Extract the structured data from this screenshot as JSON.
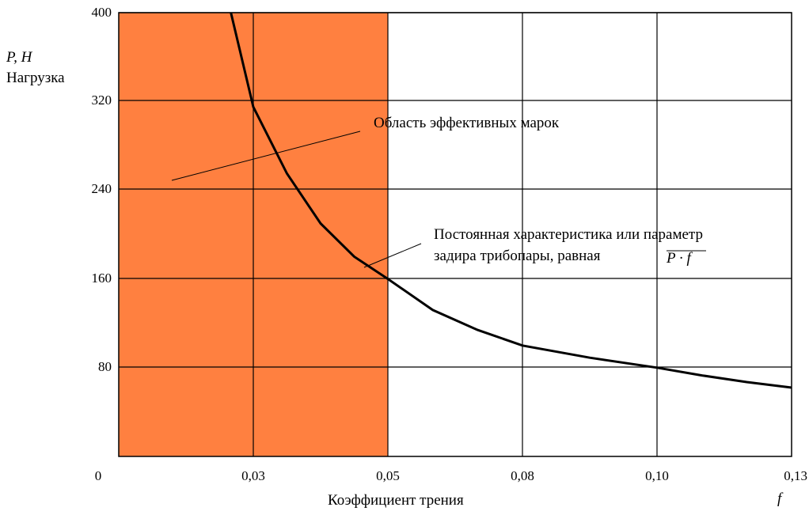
{
  "chart_data": {
    "type": "line",
    "x_ticks": [
      "0",
      "0,03",
      "0,05",
      "0,08",
      "0,10",
      "0,13"
    ],
    "y_ticks": [
      "80",
      "160",
      "240",
      "320",
      "400"
    ],
    "xlim": [
      0,
      0.13
    ],
    "ylim": [
      0,
      400
    ],
    "grid": true,
    "shaded_region": {
      "x_from": 0,
      "x_to": 0.05,
      "color": "#FF8040"
    },
    "series": [
      {
        "color": "#000000",
        "x": [
          0.025,
          0.03,
          0.035,
          0.04,
          0.045,
          0.05,
          0.06,
          0.07,
          0.08,
          0.09,
          0.1,
          0.11,
          0.12,
          0.13
        ],
        "y": [
          400,
          315,
          255,
          210,
          180,
          160,
          132,
          114,
          100,
          89,
          80,
          73,
          67,
          62
        ]
      }
    ],
    "ylabel_symbol": "P, Н",
    "ylabel": "Нагрузка",
    "xlabel": "Коэффициент трения",
    "xlabel_symbol": "f",
    "annotations": [
      {
        "text": "Область эффективных марок"
      },
      {
        "line1": "Постоянная характеристика или параметр",
        "line2": "задира трибопары, равная",
        "formula": "P · f"
      }
    ]
  }
}
